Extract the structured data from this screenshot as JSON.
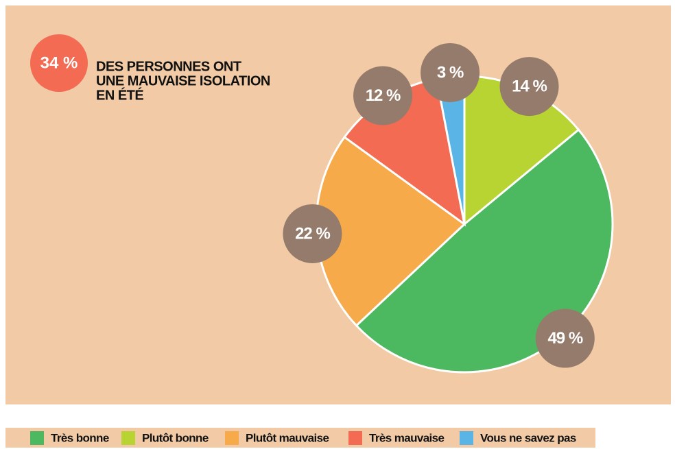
{
  "chart_data": {
    "type": "pie",
    "annotation": "34 %",
    "annotation_text": [
      "DES PERSONNES ONT",
      "UNE MAUVAISE ISOLATION",
      "EN ÉTÉ"
    ],
    "categories": [
      "Très bonne",
      "Plutôt bonne",
      "Plutôt mauvaise",
      "Très mauvaise",
      "Vous ne savez pas"
    ],
    "values": [
      49,
      14,
      22,
      12,
      3
    ],
    "value_labels": [
      "49 %",
      "14 %",
      "22 %",
      "12 %",
      "3 %"
    ],
    "colors": [
      "#4cb85f",
      "#b8d433",
      "#f7aa4a",
      "#f26b52",
      "#5ab4e5"
    ],
    "legend": "bottom"
  }
}
